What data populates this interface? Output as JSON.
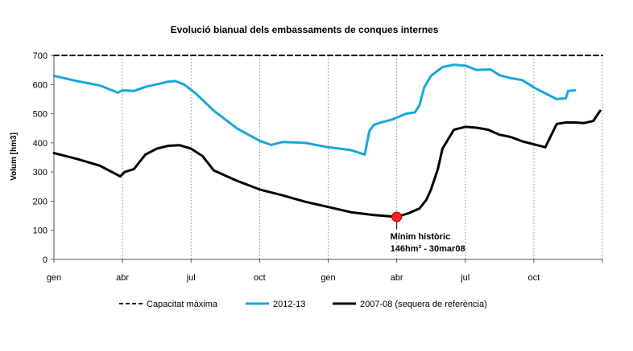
{
  "chart_data": {
    "type": "line",
    "title": "Evolució bianual dels embassaments de conques internes",
    "xlabel": "",
    "ylabel": "Volum [hm3]",
    "ylim": [
      0,
      700
    ],
    "yticks": [
      0,
      100,
      200,
      300,
      400,
      500,
      600,
      700
    ],
    "xlim": [
      0,
      24
    ],
    "grid": {
      "x": true,
      "y": false
    },
    "x_ticks": [
      {
        "label": "gen",
        "x": 0
      },
      {
        "label": "abr",
        "x": 3
      },
      {
        "label": "jul",
        "x": 6
      },
      {
        "label": "oct",
        "x": 9
      },
      {
        "label": "gen",
        "x": 12
      },
      {
        "label": "abr",
        "x": 15
      },
      {
        "label": "jul",
        "x": 18
      },
      {
        "label": "oct",
        "x": 21
      }
    ],
    "series": [
      {
        "name": "Capacitat màxima",
        "color": "#000000",
        "style": "dashed",
        "x": [
          0,
          24
        ],
        "y": [
          700,
          700
        ]
      },
      {
        "name": "2012-13",
        "color": "#1aa7d9",
        "style": "solid",
        "x": [
          0,
          1,
          2,
          2.8,
          3,
          3.5,
          4,
          5,
          5.3,
          5.7,
          6.2,
          7,
          8,
          9,
          9.5,
          10,
          11,
          12,
          13,
          13.6,
          13.8,
          14.0,
          14.3,
          14.8,
          15.4,
          15.8,
          16.0,
          16.2,
          16.5,
          17,
          17.5,
          18.0,
          18.5,
          19.1,
          19.5,
          20,
          20.5,
          21,
          21.5,
          22,
          22.4,
          22.5,
          22.8
        ],
        "y": [
          630,
          612,
          597,
          572,
          580,
          578,
          592,
          610,
          612,
          600,
          570,
          510,
          450,
          407,
          393,
          403,
          400,
          385,
          375,
          360,
          440,
          462,
          470,
          480,
          500,
          505,
          530,
          590,
          630,
          660,
          668,
          665,
          650,
          652,
          632,
          622,
          615,
          590,
          570,
          550,
          553,
          578,
          580
        ]
      },
      {
        "name": "2007-08 (sequera de referència)",
        "color": "#000000",
        "style": "solid",
        "x": [
          0,
          1,
          2,
          2.9,
          3.1,
          3.5,
          4,
          4.5,
          5,
          5.5,
          6,
          6.5,
          7,
          8,
          9,
          10,
          11,
          12,
          13,
          14,
          15,
          15.5,
          16,
          16.3,
          16.5,
          16.8,
          17,
          17.5,
          18,
          18.5,
          19,
          19.5,
          20,
          20.5,
          21,
          21.5,
          22,
          22.4,
          22.8,
          23.2,
          23.6,
          23.9
        ],
        "y": [
          365,
          345,
          322,
          285,
          300,
          310,
          360,
          380,
          390,
          392,
          380,
          355,
          305,
          270,
          240,
          220,
          198,
          180,
          162,
          152,
          146,
          158,
          175,
          205,
          240,
          310,
          380,
          445,
          455,
          452,
          445,
          428,
          420,
          405,
          395,
          385,
          465,
          470,
          470,
          468,
          475,
          510
        ]
      }
    ],
    "annotations": [
      {
        "text_line1": "Mínim històric",
        "text_line2": "146hm³ - 30mar08",
        "x": 15,
        "y": 146
      }
    ],
    "legend": {
      "placement": "bottom",
      "entries": [
        "Capacitat màxima",
        "2012-13",
        "2007-08 (sequera de referència)"
      ]
    }
  },
  "style": {
    "axis_color": "#000000",
    "grid_color": "#8c8c8c",
    "marker_fill": "#ff2020",
    "marker_stroke": "#b00000"
  }
}
